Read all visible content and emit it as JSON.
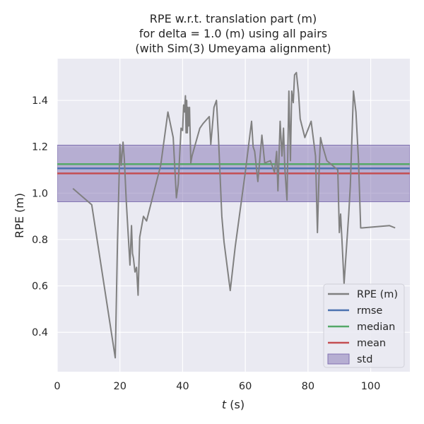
{
  "chart_data": {
    "type": "line",
    "title_lines": [
      "RPE w.r.t. translation part (m)",
      "for delta = 1.0 (m) using all pairs",
      "(with Sim(3) Umeyama alignment)"
    ],
    "xlabel_italic": "t",
    "xlabel_rest": " (s)",
    "ylabel": "RPE (m)",
    "xlim": [
      0,
      112.5
    ],
    "ylim": [
      0.23,
      1.58
    ],
    "xticks": [
      0,
      20,
      40,
      60,
      80,
      100
    ],
    "yticks": [
      0.4,
      0.6,
      0.8,
      1.0,
      1.2,
      1.4
    ],
    "xtick_labels": [
      "0",
      "20",
      "40",
      "60",
      "80",
      "100"
    ],
    "ytick_labels": [
      "0.4",
      "0.6",
      "0.8",
      "1.0",
      "1.2",
      "1.4"
    ],
    "grid": true,
    "legend_position": "lower-right",
    "colors": {
      "background": "#eaeaf2",
      "grid": "#ffffff",
      "rpe": "#808080",
      "rmse": "#4c72b0",
      "median": "#55a868",
      "mean": "#c44e52",
      "std": "#8172b2"
    },
    "statistics": {
      "rmse": 1.107,
      "median": 1.125,
      "mean": 1.085,
      "std_lower": 0.963,
      "std_upper": 1.207
    },
    "legend": [
      {
        "key": "rpe",
        "label": "RPE (m)",
        "kind": "line"
      },
      {
        "key": "rmse",
        "label": "rmse",
        "kind": "line"
      },
      {
        "key": "median",
        "label": "median",
        "kind": "line"
      },
      {
        "key": "mean",
        "label": "mean",
        "kind": "line"
      },
      {
        "key": "std",
        "label": "std",
        "kind": "patch"
      }
    ],
    "series": [
      {
        "key": "rpe",
        "x": [
          5,
          11,
          18.5,
          19.2,
          20,
          20.4,
          21,
          21.4,
          22,
          23.2,
          23.7,
          24,
          24.3,
          24.8,
          25.3,
          25.8,
          26.3,
          27.5,
          28.5,
          33,
          35.3,
          37,
          38,
          38.6,
          39.5,
          40,
          40.3,
          40.6,
          40.9,
          41.1,
          41.3,
          41.5,
          41.7,
          41.9,
          42.2,
          42.6,
          43,
          45.5,
          46.5,
          48.5,
          49,
          50,
          50.8,
          51.4,
          52.5,
          53.2,
          55.2,
          56.8,
          60,
          62,
          62.5,
          63,
          64,
          64.6,
          65.3,
          66.2,
          68,
          69.3,
          70,
          70.4,
          71.1,
          71.7,
          72.2,
          72.6,
          73.3,
          73.9,
          74.4,
          74.8,
          75.3,
          75.7,
          76.3,
          77,
          77.5,
          79,
          81,
          82.4,
          83,
          83.6,
          84,
          84.5,
          86,
          89.5,
          90,
          90.4,
          90.8,
          91.5,
          93,
          93.5,
          94.5,
          95.3,
          96.1,
          96.8,
          97.3,
          106,
          107.8
        ],
        "y": [
          1.02,
          0.95,
          0.29,
          0.78,
          1.21,
          1.12,
          1.22,
          1.15,
          0.97,
          0.69,
          0.86,
          0.74,
          0.72,
          0.66,
          0.68,
          0.56,
          0.81,
          0.9,
          0.88,
          1.12,
          1.35,
          1.24,
          0.98,
          1.04,
          1.28,
          1.27,
          1.38,
          1.35,
          1.42,
          1.26,
          1.4,
          1.26,
          1.37,
          1.29,
          1.37,
          1.13,
          1.16,
          1.28,
          1.3,
          1.33,
          1.21,
          1.37,
          1.4,
          1.25,
          0.9,
          0.79,
          0.58,
          0.77,
          1.09,
          1.31,
          1.2,
          1.18,
          1.05,
          1.14,
          1.25,
          1.13,
          1.14,
          1.09,
          1.18,
          1.01,
          1.31,
          1.16,
          1.28,
          1.11,
          0.97,
          1.44,
          1.14,
          1.44,
          1.39,
          1.51,
          1.52,
          1.43,
          1.32,
          1.24,
          1.31,
          1.16,
          0.83,
          1.12,
          1.24,
          1.21,
          1.14,
          1.1,
          0.83,
          0.91,
          0.81,
          0.61,
          0.91,
          1.03,
          1.44,
          1.35,
          1.14,
          0.85,
          0.85,
          0.86,
          0.85
        ]
      }
    ]
  }
}
